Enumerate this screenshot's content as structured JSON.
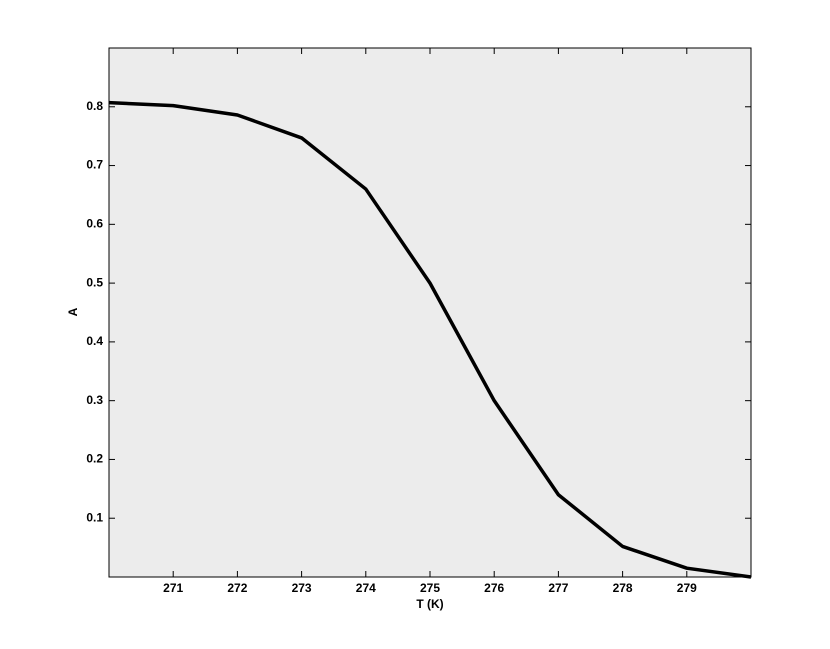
{
  "chart_data": {
    "type": "line",
    "x_label": "T (K)",
    "y_label": "A",
    "x": [
      270,
      271,
      272,
      273,
      274,
      275,
      276,
      277,
      278,
      279,
      280
    ],
    "series": [
      {
        "name": "A",
        "color": "#000000",
        "values": [
          0.807,
          0.802,
          0.786,
          0.747,
          0.66,
          0.5,
          0.3,
          0.14,
          0.052,
          0.015,
          0.0
        ]
      }
    ],
    "xlim": [
      270,
      280
    ],
    "ylim": [
      0,
      0.9
    ],
    "xticks": [
      271,
      272,
      273,
      274,
      275,
      276,
      277,
      278,
      279
    ],
    "yticks": [
      0.1,
      0.2,
      0.3,
      0.4,
      0.5,
      0.6,
      0.7,
      0.8
    ],
    "background": "#ececec"
  }
}
